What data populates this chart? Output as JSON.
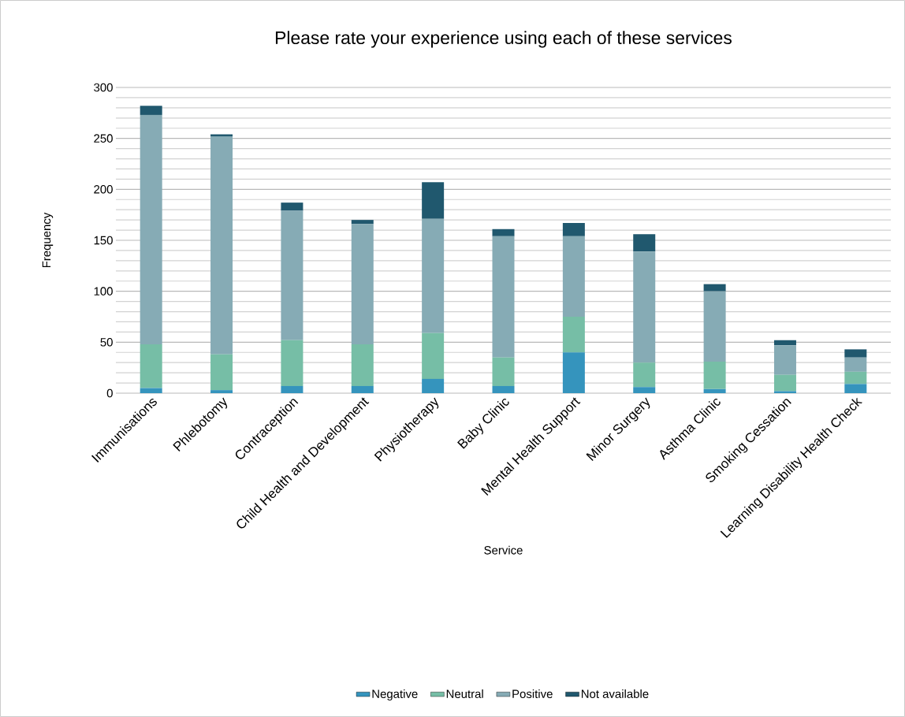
{
  "chart_data": {
    "type": "bar",
    "stacked": true,
    "title": "Please rate your experience using each of these services",
    "xlabel": "Service",
    "ylabel": "Frequency",
    "categories": [
      "Immunisations",
      "Phlebotomy",
      "Contraception",
      "Child Health and Development",
      "Physiotherapy",
      "Baby Clinic",
      "Mental Health Support",
      "Minor Surgery",
      "Asthma Clinic",
      "Smoking Cessation",
      "Learning Disability Health Check"
    ],
    "series": [
      {
        "name": "Negative",
        "color": "#3594bd",
        "values": [
          5,
          3,
          7,
          7,
          14,
          7,
          40,
          6,
          4,
          2,
          9
        ]
      },
      {
        "name": "Neutral",
        "color": "#76bea6",
        "values": [
          43,
          35,
          45,
          41,
          45,
          28,
          35,
          24,
          27,
          16,
          12
        ]
      },
      {
        "name": "Positive",
        "color": "#86abb5",
        "values": [
          225,
          214,
          127,
          118,
          112,
          119,
          79,
          109,
          69,
          29,
          14
        ]
      },
      {
        "name": "Not available",
        "color": "#20586e",
        "values": [
          9,
          2,
          8,
          4,
          36,
          7,
          13,
          17,
          7,
          5,
          8
        ]
      }
    ],
    "ylim": [
      0,
      300
    ],
    "yticks": [
      0,
      50,
      100,
      150,
      200,
      250,
      300
    ],
    "grid": "y",
    "legend": "bottom"
  }
}
